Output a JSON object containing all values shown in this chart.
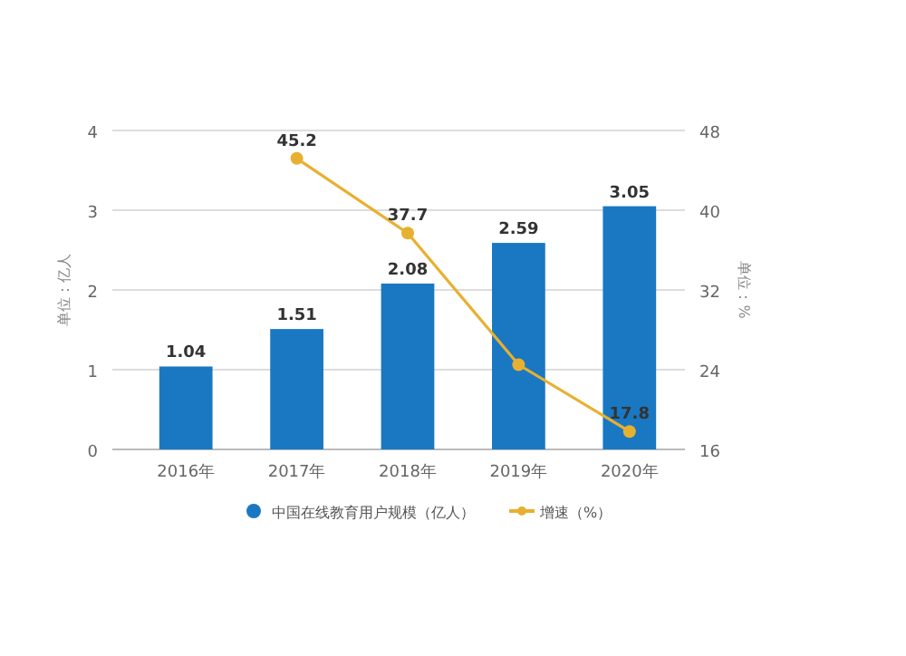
{
  "chart_data": {
    "type": "bar",
    "categories": [
      "2016年",
      "2017年",
      "2018年",
      "2019年",
      "2020年"
    ],
    "ylabel": "单位：亿人",
    "y2label": "单位：%",
    "ylim": [
      0,
      4
    ],
    "yticks": [
      0,
      1,
      2,
      3,
      4
    ],
    "y2lim": [
      16,
      48
    ],
    "y2ticks": [
      16,
      24,
      32,
      40,
      48
    ],
    "grid": "y",
    "legend": "bottom",
    "series": [
      {
        "name": "中国在线教育用户规模（亿人）",
        "color": "#1a78c2",
        "values": [
          1.04,
          1.51,
          2.08,
          2.59,
          3.05
        ],
        "value_labels": [
          "1.04",
          "1.51",
          "2.08",
          "2.59",
          "3.05"
        ]
      },
      {
        "name": "增速（%）",
        "type": "line",
        "axis": "y2",
        "color": "#e8b030",
        "marker": "circle",
        "values": [
          null,
          45.2,
          37.7,
          24.5,
          17.8
        ],
        "value_labels": [
          null,
          "45.2",
          "37.7",
          null,
          "17.8"
        ]
      }
    ]
  }
}
